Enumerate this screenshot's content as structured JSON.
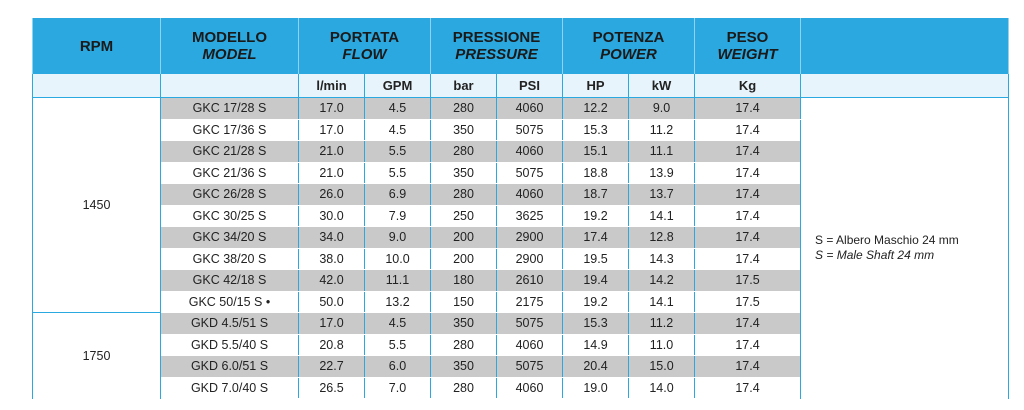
{
  "header": {
    "rpm": "RPM",
    "columns": [
      {
        "main": "MODELLO",
        "sub": "MODEL",
        "span": 1
      },
      {
        "main": "PORTATA",
        "sub": "FLOW",
        "span": 2
      },
      {
        "main": "PRESSIONE",
        "sub": "PRESSURE",
        "span": 2
      },
      {
        "main": "POTENZA",
        "sub": "POWER",
        "span": 2
      },
      {
        "main": "PESO",
        "sub": "WEIGHT",
        "span": 1
      }
    ]
  },
  "units": [
    "l/min",
    "GPM",
    "bar",
    "PSI",
    "HP",
    "kW",
    "Kg"
  ],
  "groups": [
    {
      "rpm": "1450",
      "rows": [
        [
          "GKC 17/28 S",
          "17.0",
          "4.5",
          "280",
          "4060",
          "12.2",
          "9.0",
          "17.4"
        ],
        [
          "GKC 17/36 S",
          "17.0",
          "4.5",
          "350",
          "5075",
          "15.3",
          "11.2",
          "17.4"
        ],
        [
          "GKC 21/28 S",
          "21.0",
          "5.5",
          "280",
          "4060",
          "15.1",
          "11.1",
          "17.4"
        ],
        [
          "GKC 21/36 S",
          "21.0",
          "5.5",
          "350",
          "5075",
          "18.8",
          "13.9",
          "17.4"
        ],
        [
          "GKC 26/28 S",
          "26.0",
          "6.9",
          "280",
          "4060",
          "18.7",
          "13.7",
          "17.4"
        ],
        [
          "GKC 30/25 S",
          "30.0",
          "7.9",
          "250",
          "3625",
          "19.2",
          "14.1",
          "17.4"
        ],
        [
          "GKC 34/20 S",
          "34.0",
          "9.0",
          "200",
          "2900",
          "17.4",
          "12.8",
          "17.4"
        ],
        [
          "GKC 38/20 S",
          "38.0",
          "10.0",
          "200",
          "2900",
          "19.5",
          "14.3",
          "17.4"
        ],
        [
          "GKC 42/18 S",
          "42.0",
          "11.1",
          "180",
          "2610",
          "19.4",
          "14.2",
          "17.5"
        ],
        [
          "GKC 50/15 S •",
          "50.0",
          "13.2",
          "150",
          "2175",
          "19.2",
          "14.1",
          "17.5"
        ]
      ]
    },
    {
      "rpm": "1750",
      "rows": [
        [
          "GKD 4.5/51 S",
          "17.0",
          "4.5",
          "350",
          "5075",
          "15.3",
          "11.2",
          "17.4"
        ],
        [
          "GKD 5.5/40 S",
          "20.8",
          "5.5",
          "280",
          "4060",
          "14.9",
          "11.0",
          "17.4"
        ],
        [
          "GKD 6.0/51 S",
          "22.7",
          "6.0",
          "350",
          "5075",
          "20.4",
          "15.0",
          "17.4"
        ],
        [
          "GKD 7.0/40 S",
          "26.5",
          "7.0",
          "280",
          "4060",
          "19.0",
          "14.0",
          "17.4"
        ]
      ]
    }
  ],
  "note": [
    "S = Albero Maschio 24 mm",
    "S = Male Shaft 24 mm"
  ]
}
